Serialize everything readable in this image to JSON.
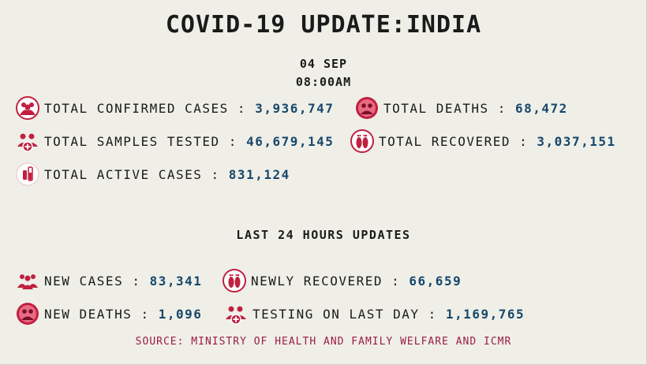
{
  "title": "COVID-19 UPDATE:INDIA",
  "date": "04 SEP",
  "time": "08:00AM",
  "totals": {
    "confirmed": {
      "label": "TOTAL CONFIRMED CASES :",
      "value": "3,936,747",
      "icon": "people-group-icon"
    },
    "deaths": {
      "label": "TOTAL DEATHS :",
      "value": "68,472",
      "icon": "skull-people-icon"
    },
    "tested": {
      "label": "TOTAL SAMPLES TESTED :",
      "value": "46,679,145",
      "icon": "people-medical-cross-icon"
    },
    "recovered": {
      "label": "TOTAL RECOVERED :",
      "value": "3,037,151",
      "icon": "footprints-icon"
    },
    "active": {
      "label": "TOTAL ACTIVE CASES :",
      "value": "831,124",
      "icon": "test-tubes-icon"
    }
  },
  "last24_heading": "LAST 24 HOURS UPDATES",
  "last24": {
    "new_cases": {
      "label": "NEW CASES :",
      "value": "83,341",
      "icon": "people-group-icon"
    },
    "newly_recovered": {
      "label": "NEWLY RECOVERED :",
      "value": "66,659",
      "icon": "footprints-icon"
    },
    "new_deaths": {
      "label": "NEW DEATHS :",
      "value": "1,096",
      "icon": "skull-people-icon"
    },
    "testing_last_day": {
      "label": "TESTING ON LAST DAY :",
      "value": "1,169,765",
      "icon": "people-medical-cross-icon"
    }
  },
  "source": "SOURCE: MINISTRY OF HEALTH AND FAMILY WELFARE AND ICMR",
  "colors": {
    "icon": "#c0203f",
    "value": "#17476b",
    "source": "#9b1c45",
    "background": "#efefe8"
  }
}
